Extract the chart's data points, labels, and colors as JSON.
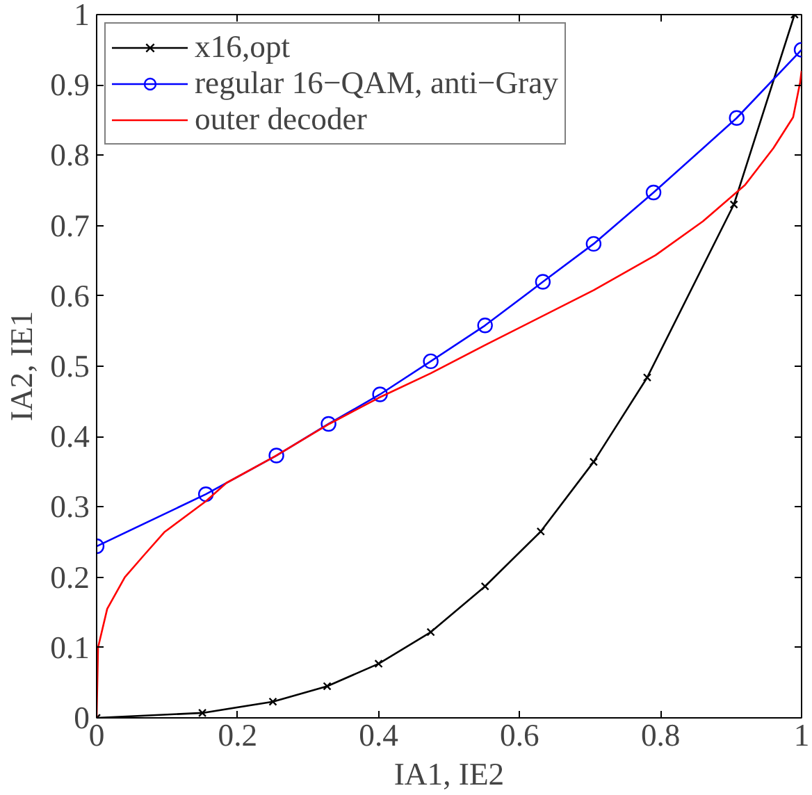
{
  "chart_data": {
    "type": "line",
    "xlabel": "IA1, IE2",
    "ylabel": "IA2, IE1",
    "xlim": [
      0,
      1
    ],
    "ylim": [
      0,
      1
    ],
    "xticks": [
      0,
      0.2,
      0.4,
      0.6,
      0.8,
      1
    ],
    "yticks": [
      0,
      0.1,
      0.2,
      0.3,
      0.4,
      0.5,
      0.6,
      0.7,
      0.8,
      0.9,
      1
    ],
    "grid": false,
    "legend": "top left",
    "line_style": "solid",
    "series": [
      {
        "name": "x16,opt",
        "color": "#000000",
        "marker": "cross",
        "x": [
          0,
          0.15,
          0.25,
          0.327,
          0.4,
          0.474,
          0.551,
          0.63,
          0.705,
          0.781,
          0.904,
          0.99
        ],
        "values": [
          0,
          0.007,
          0.023,
          0.045,
          0.077,
          0.122,
          0.187,
          0.265,
          0.364,
          0.484,
          0.73,
          1.0
        ]
      },
      {
        "name": "regular 16−QAM, anti−Gray",
        "color": "#0000ff",
        "marker": "circle",
        "x": [
          0,
          0.155,
          0.255,
          0.329,
          0.402,
          0.474,
          0.551,
          0.633,
          0.705,
          0.79,
          0.908,
          1.0
        ],
        "values": [
          0.244,
          0.318,
          0.373,
          0.418,
          0.46,
          0.507,
          0.558,
          0.62,
          0.674,
          0.747,
          0.853,
          0.95
        ]
      },
      {
        "name": "outer decoder",
        "color": "#ff0000",
        "marker": "none",
        "x": [
          0,
          0.002,
          0.015,
          0.04,
          0.066,
          0.096,
          0.155,
          0.184,
          0.253,
          0.33,
          0.4,
          0.474,
          0.551,
          0.705,
          0.793,
          0.86,
          0.92,
          0.96,
          0.988,
          0.998,
          1.0
        ],
        "values": [
          0,
          0.1,
          0.155,
          0.2,
          0.23,
          0.264,
          0.308,
          0.334,
          0.372,
          0.418,
          0.455,
          0.49,
          0.53,
          0.608,
          0.658,
          0.706,
          0.758,
          0.81,
          0.854,
          0.904,
          0.92
        ]
      }
    ]
  }
}
